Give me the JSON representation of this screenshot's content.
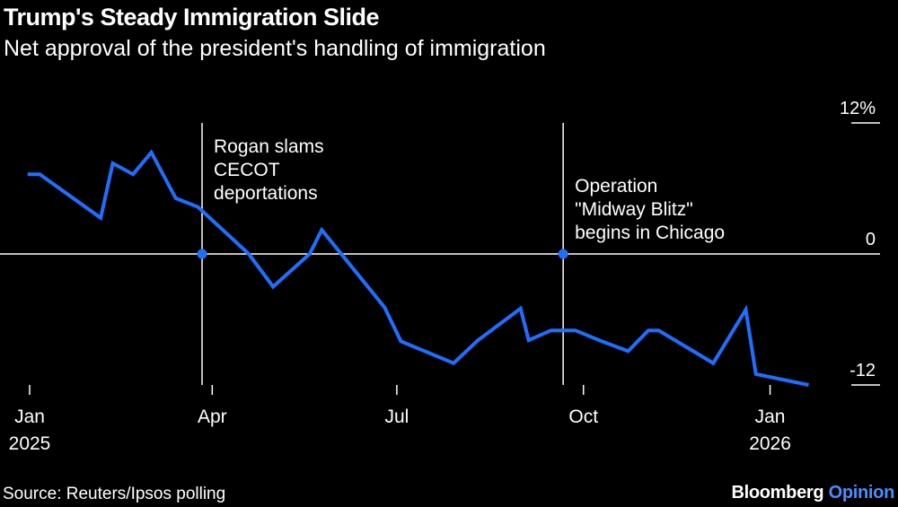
{
  "chart_data": {
    "type": "line",
    "title": "Trump's Steady Immigration Slide",
    "subtitle": "Net approval of the president's handling of immigration",
    "ylim": [
      -12,
      12
    ],
    "yticks": [
      {
        "value": 12,
        "label": "12%"
      },
      {
        "value": 0,
        "label": "0"
      },
      {
        "value": -12,
        "label": "-12"
      }
    ],
    "xlim": [
      "2025-01-01",
      "2026-01-22"
    ],
    "xticks": [
      {
        "date": "2025-01-01",
        "label": "Jan",
        "sublabel": "2025"
      },
      {
        "date": "2025-04-01",
        "label": "Apr",
        "sublabel": ""
      },
      {
        "date": "2025-07-01",
        "label": "Jul",
        "sublabel": ""
      },
      {
        "date": "2025-10-01",
        "label": "Oct",
        "sublabel": ""
      },
      {
        "date": "2026-01-01",
        "label": "Jan",
        "sublabel": "2026"
      }
    ],
    "series": [
      {
        "color": "#1f6fff",
        "points": [
          {
            "x": "2024-12-31",
            "y": 7.3
          },
          {
            "x": "2025-01-06",
            "y": 7.3
          },
          {
            "x": "2025-02-05",
            "y": 3.3
          },
          {
            "x": "2025-02-11",
            "y": 8.3
          },
          {
            "x": "2025-02-21",
            "y": 7.3
          },
          {
            "x": "2025-03-02",
            "y": 9.3
          },
          {
            "x": "2025-03-14",
            "y": 5.1
          },
          {
            "x": "2025-03-25",
            "y": 4.3
          },
          {
            "x": "2025-04-19",
            "y": 0.0
          },
          {
            "x": "2025-05-01",
            "y": -3.0
          },
          {
            "x": "2025-05-19",
            "y": 0.0
          },
          {
            "x": "2025-05-25",
            "y": 2.2
          },
          {
            "x": "2025-06-25",
            "y": -4.9
          },
          {
            "x": "2025-07-03",
            "y": -8.0
          },
          {
            "x": "2025-07-29",
            "y": -10.0
          },
          {
            "x": "2025-08-10",
            "y": -7.9
          },
          {
            "x": "2025-08-31",
            "y": -5.0
          },
          {
            "x": "2025-09-04",
            "y": -7.9
          },
          {
            "x": "2025-09-15",
            "y": -7.0
          },
          {
            "x": "2025-09-27",
            "y": -7.0
          },
          {
            "x": "2025-10-10",
            "y": -8.0
          },
          {
            "x": "2025-10-23",
            "y": -8.9
          },
          {
            "x": "2025-11-02",
            "y": -7.0
          },
          {
            "x": "2025-11-07",
            "y": -7.0
          },
          {
            "x": "2025-11-25",
            "y": -9.0
          },
          {
            "x": "2025-12-04",
            "y": -10.0
          },
          {
            "x": "2025-12-20",
            "y": -5.1
          },
          {
            "x": "2025-12-25",
            "y": -11.0
          },
          {
            "x": "2026-01-20",
            "y": -12.0
          }
        ]
      }
    ],
    "annotations": [
      {
        "x": "2025-03-27",
        "lines": [
          "Rogan slams",
          "CECOT",
          "deportations"
        ]
      },
      {
        "x": "2025-09-21",
        "lines": [
          "Operation",
          "\"Midway Blitz\"",
          "begins in Chicago"
        ]
      }
    ],
    "zero_line": true,
    "grid": false,
    "legend": "none",
    "colors": {
      "background": "#000000",
      "line": "#1f6fff",
      "text": "#ffffff",
      "accent": "#4a8dff"
    }
  },
  "footer": {
    "source": "Source: Reuters/Ipsos polling",
    "brand_name": "Bloomberg",
    "brand_section": "Opinion"
  }
}
